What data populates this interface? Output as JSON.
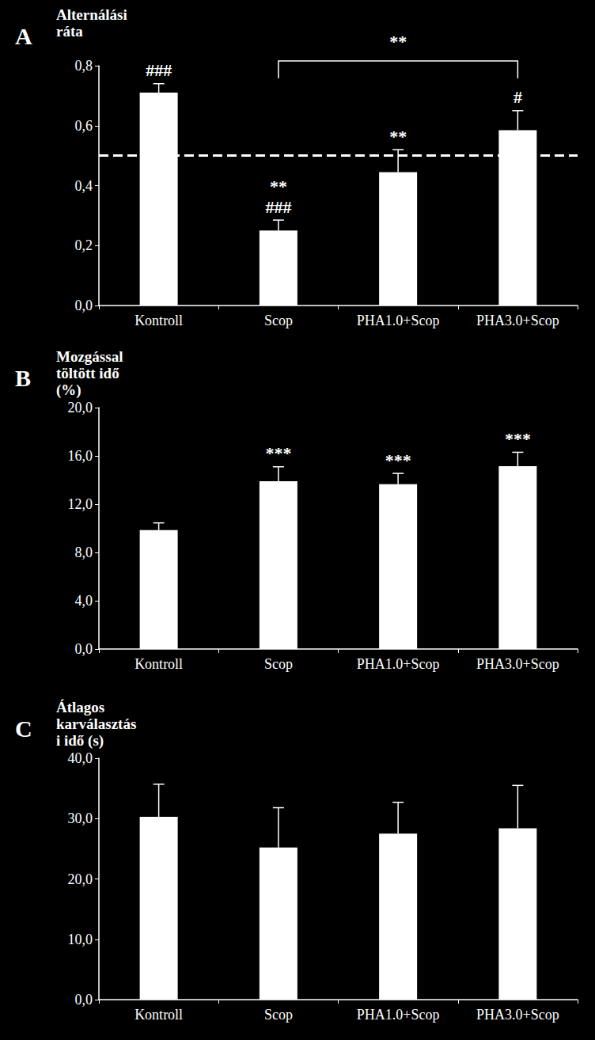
{
  "chart_data": [
    {
      "type": "bar",
      "panel": "A",
      "ylabel": "Alternálási ráta",
      "categories": [
        "Kontroll",
        "Scop",
        "PHA1.0+Scop",
        "PHA3.0+Scop"
      ],
      "values": [
        0.71,
        0.25,
        0.445,
        0.585
      ],
      "errors": [
        0.03,
        0.035,
        0.075,
        0.065
      ],
      "annotations": [
        [
          "###"
        ],
        [
          "**",
          "###"
        ],
        [
          "**"
        ],
        [
          "#"
        ]
      ],
      "bracket": {
        "from": "Scop",
        "to": "PHA3.0+Scop",
        "label": "**"
      },
      "hline": 0.5,
      "color": "#ffffff",
      "ylim": [
        0,
        0.8
      ],
      "yticks": [
        {
          "value": 0,
          "label": "0,0"
        },
        {
          "value": 0.2,
          "label": "0,2"
        },
        {
          "value": 0.4,
          "label": "0,4"
        },
        {
          "value": 0.6,
          "label": "0,6"
        },
        {
          "value": 0.8,
          "label": "0,8"
        }
      ],
      "grid": false
    },
    {
      "type": "bar",
      "panel": "B",
      "ylabel": "Mozgással töltött idő (%)",
      "categories": [
        "Kontroll",
        "Scop",
        "PHA1.0+Scop",
        "PHA3.0+Scop"
      ],
      "values": [
        9.85,
        13.9,
        13.65,
        15.15
      ],
      "errors": [
        0.6,
        1.2,
        0.9,
        1.15
      ],
      "annotations": [
        [],
        [
          "***"
        ],
        [
          "***"
        ],
        [
          "***"
        ]
      ],
      "color": "#ffffff",
      "ylim": [
        0,
        20
      ],
      "yticks": [
        {
          "value": 0,
          "label": "0,0"
        },
        {
          "value": 4,
          "label": "4,0"
        },
        {
          "value": 8,
          "label": "8,0"
        },
        {
          "value": 12,
          "label": "12,0"
        },
        {
          "value": 16,
          "label": "16,0"
        },
        {
          "value": 20,
          "label": "20,0"
        }
      ],
      "grid": false
    },
    {
      "type": "bar",
      "panel": "C",
      "ylabel": "Átlagos karválasztási idő (s)",
      "categories": [
        "Kontroll",
        "Scop",
        "PHA1.0+Scop",
        "PHA3.0+Scop"
      ],
      "values": [
        30.3,
        25.2,
        27.5,
        28.4
      ],
      "errors": [
        5.4,
        6.6,
        5.2,
        7.1
      ],
      "annotations": [
        [],
        [],
        [],
        []
      ],
      "color": "#ffffff",
      "ylim": [
        0,
        40
      ],
      "yticks": [
        {
          "value": 0,
          "label": "0,0"
        },
        {
          "value": 10,
          "label": "10,0"
        },
        {
          "value": 20,
          "label": "20,0"
        },
        {
          "value": 30,
          "label": "30,0"
        },
        {
          "value": 40,
          "label": "40,0"
        }
      ],
      "grid": false
    }
  ]
}
